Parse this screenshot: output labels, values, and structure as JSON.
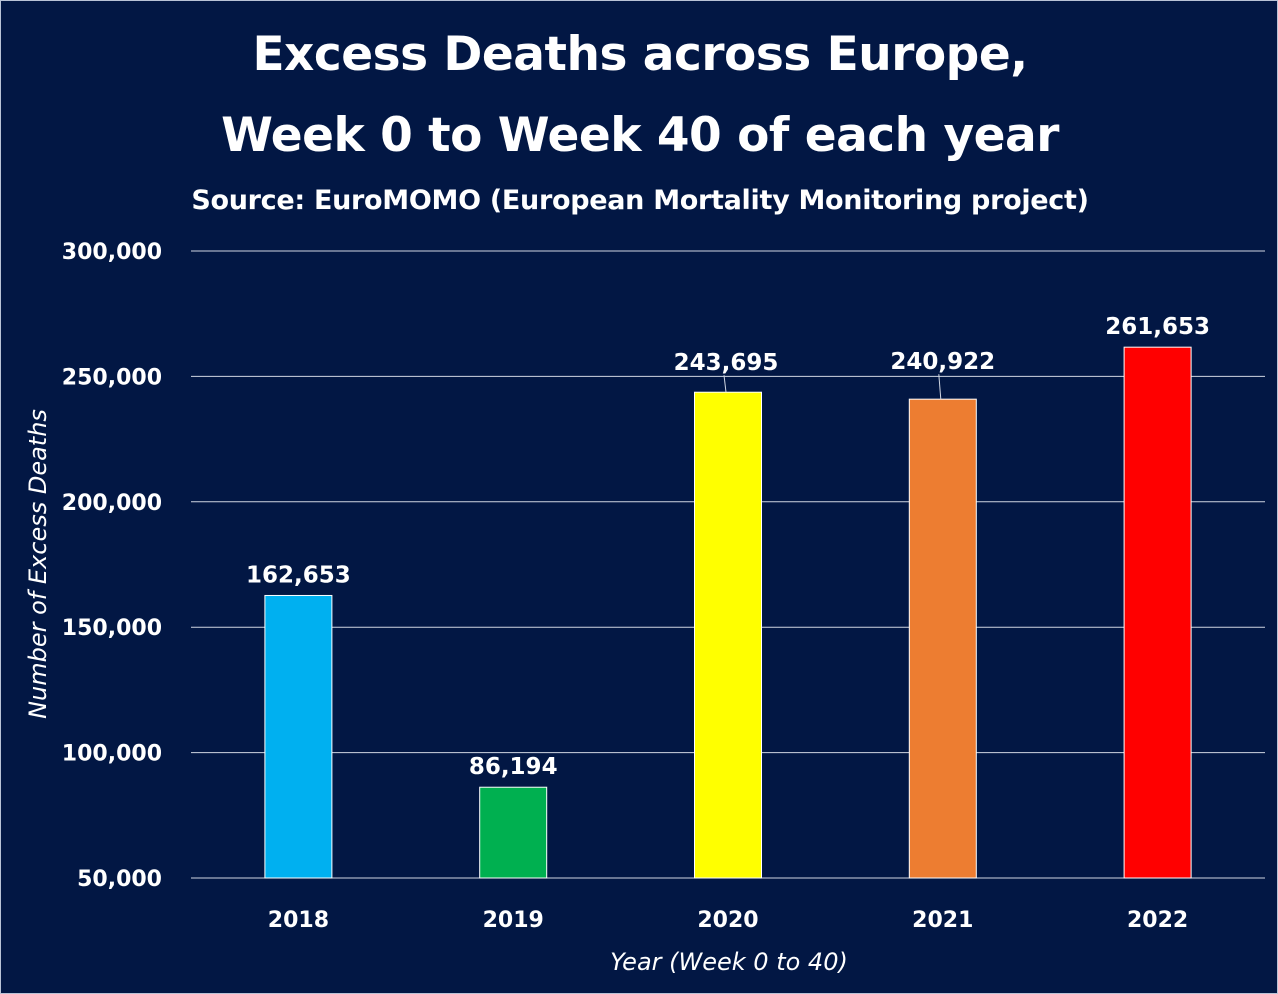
{
  "chart_data": {
    "type": "bar",
    "title": "Excess Deaths across Europe,",
    "title_line_2": "Week 0 to Week 40 of each year",
    "subtitle": "Source: EuroMOMO (European Mortality Monitoring project)",
    "xlabel": "Year (Week 0 to 40)",
    "ylabel": "Number of Excess Deaths",
    "categories": [
      "2018",
      "2019",
      "2020",
      "2021",
      "2022"
    ],
    "values": [
      162653,
      86194,
      243695,
      240922,
      261653
    ],
    "value_labels": [
      "162,653",
      "86,194",
      "243,695",
      "240,922",
      "261,653"
    ],
    "bar_colors": [
      "#00b0f0",
      "#00b050",
      "#ffff00",
      "#ed7d31",
      "#ff0000"
    ],
    "ylim": [
      50000,
      300000
    ],
    "y_ticks": [
      50000,
      100000,
      150000,
      200000,
      250000,
      300000
    ],
    "y_tick_labels": [
      "50,000",
      "100,000",
      "150,000",
      "200,000",
      "250,000",
      "300,000"
    ],
    "grid": true,
    "legend": "none",
    "background_color": "#021744",
    "gridline_color": "#d0d6e2"
  }
}
